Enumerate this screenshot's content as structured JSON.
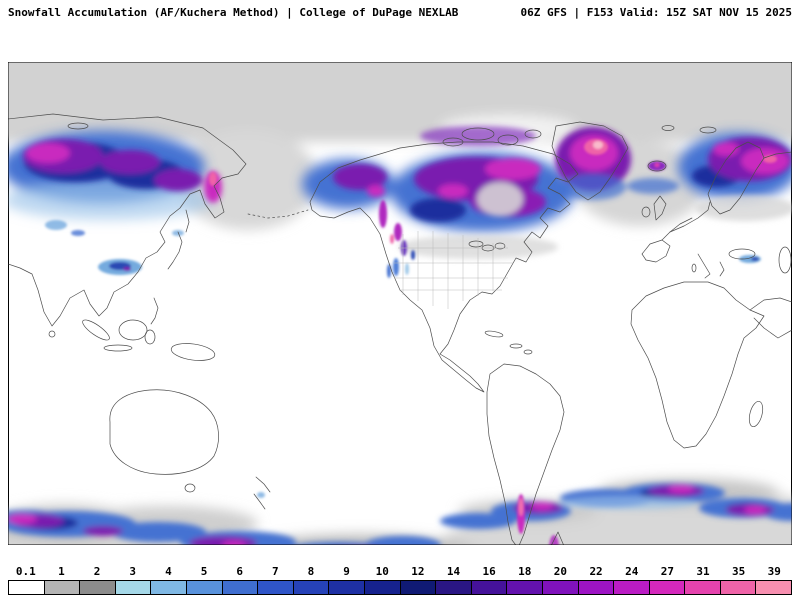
{
  "header": {
    "left_title": "Snowfall Accumulation (AF/Kuchera Method) | College of DuPage NEXLAB",
    "right_title": "06Z GFS | F153 Valid: 15Z SAT NOV 15 2025"
  },
  "map": {
    "description": "Pacific-centered global snowfall accumulation map",
    "units": "inches"
  },
  "colorbar": {
    "labels": [
      "0.1",
      "1",
      "2",
      "3",
      "4",
      "5",
      "6",
      "7",
      "8",
      "9",
      "10",
      "12",
      "14",
      "16",
      "18",
      "20",
      "22",
      "24",
      "27",
      "31",
      "35",
      "39"
    ],
    "colors": [
      "#ffffff",
      "#b4b4b4",
      "#8c8c8c",
      "#a5d8e8",
      "#7fb8e4",
      "#5992dc",
      "#3f6ed0",
      "#2f55c8",
      "#2642b8",
      "#1e30a4",
      "#16228e",
      "#101a74",
      "#2a1684",
      "#45129a",
      "#6312ae",
      "#8012bc",
      "#9d14c4",
      "#ba1cc4",
      "#d428bc",
      "#e543ae",
      "#ef63a8",
      "#f78fb0"
    ]
  }
}
